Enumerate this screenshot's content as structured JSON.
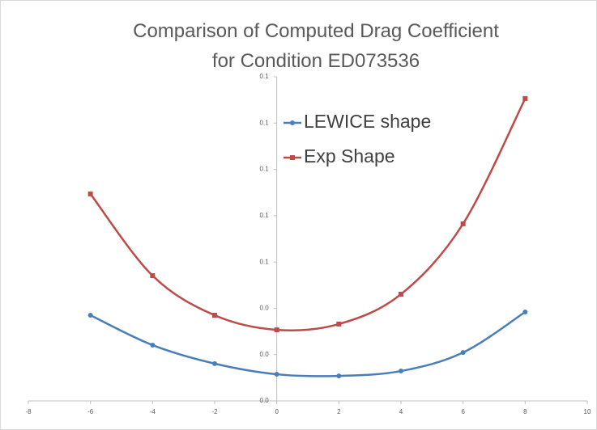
{
  "chart_data": {
    "type": "line",
    "smooth": true,
    "title": "Comparison of Computed Drag Coefficient for Condition ED073536",
    "xlim": [
      -8,
      10
    ],
    "xticks": [
      -8,
      -6,
      -4,
      -2,
      0,
      2,
      4,
      6,
      8,
      10
    ],
    "ylim": [
      0,
      0.14
    ],
    "yticks": [
      {
        "value": 0,
        "label": "0.0"
      },
      {
        "value": 0.02,
        "label": "0.0"
      },
      {
        "value": 0.04,
        "label": "0.0"
      },
      {
        "value": 0.06,
        "label": "0.1"
      },
      {
        "value": 0.08,
        "label": "0.1"
      },
      {
        "value": 0.1,
        "label": "0.1"
      },
      {
        "value": 0.12,
        "label": "0.1"
      },
      {
        "value": 0.14,
        "label": "0.1"
      }
    ],
    "grid": false,
    "legend": "top",
    "x": [
      -6,
      -4,
      -2,
      0,
      2,
      4,
      6,
      8
    ],
    "series": [
      {
        "name": "LEWICE shape",
        "color": "#4a7ebb",
        "marker": "circle",
        "values": [
          0.037,
          0.0241,
          0.0161,
          0.0115,
          0.0108,
          0.0129,
          0.0209,
          0.0384
        ]
      },
      {
        "name": "Exp Shape",
        "color": "#be4b48",
        "marker": "square",
        "values": [
          0.0894,
          0.0541,
          0.037,
          0.0307,
          0.0332,
          0.0461,
          0.0765,
          0.1306
        ]
      }
    ]
  }
}
